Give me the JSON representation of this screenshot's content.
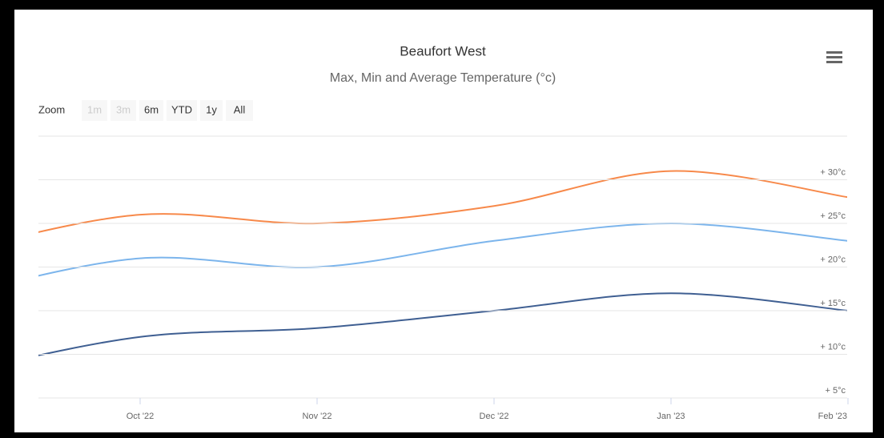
{
  "chart_data": {
    "type": "line",
    "title": "Beaufort West",
    "subtitle": "Max, Min and Average Temperature (°c)",
    "zoom": {
      "label": "Zoom",
      "buttons": [
        "1m",
        "3m",
        "6m",
        "YTD",
        "1y",
        "All"
      ],
      "disabled": [
        true,
        true,
        false,
        false,
        false,
        false
      ]
    },
    "categories": [
      null,
      "Oct '22",
      "Nov '22",
      "Dec '22",
      "Jan '23",
      "Feb '23"
    ],
    "series": [
      {
        "color": "#f7894a",
        "values": [
          22,
          26,
          25,
          27,
          31,
          28
        ]
      },
      {
        "color": "#7cb5ec",
        "values": [
          17,
          21,
          20,
          23,
          25,
          23
        ]
      },
      {
        "color": "#3f5f92",
        "values": [
          8,
          12,
          13,
          15,
          17,
          15
        ]
      }
    ],
    "ylim": [
      5,
      35
    ],
    "yticks": [
      {
        "value": 5,
        "label": "+ 5°c"
      },
      {
        "value": 10,
        "label": "+ 10°c"
      },
      {
        "value": 15,
        "label": "+ 15°c"
      },
      {
        "value": 20,
        "label": "+ 20°c"
      },
      {
        "value": 25,
        "label": "+ 25°c"
      },
      {
        "value": 30,
        "label": "+ 30°c"
      }
    ],
    "grid": true
  }
}
